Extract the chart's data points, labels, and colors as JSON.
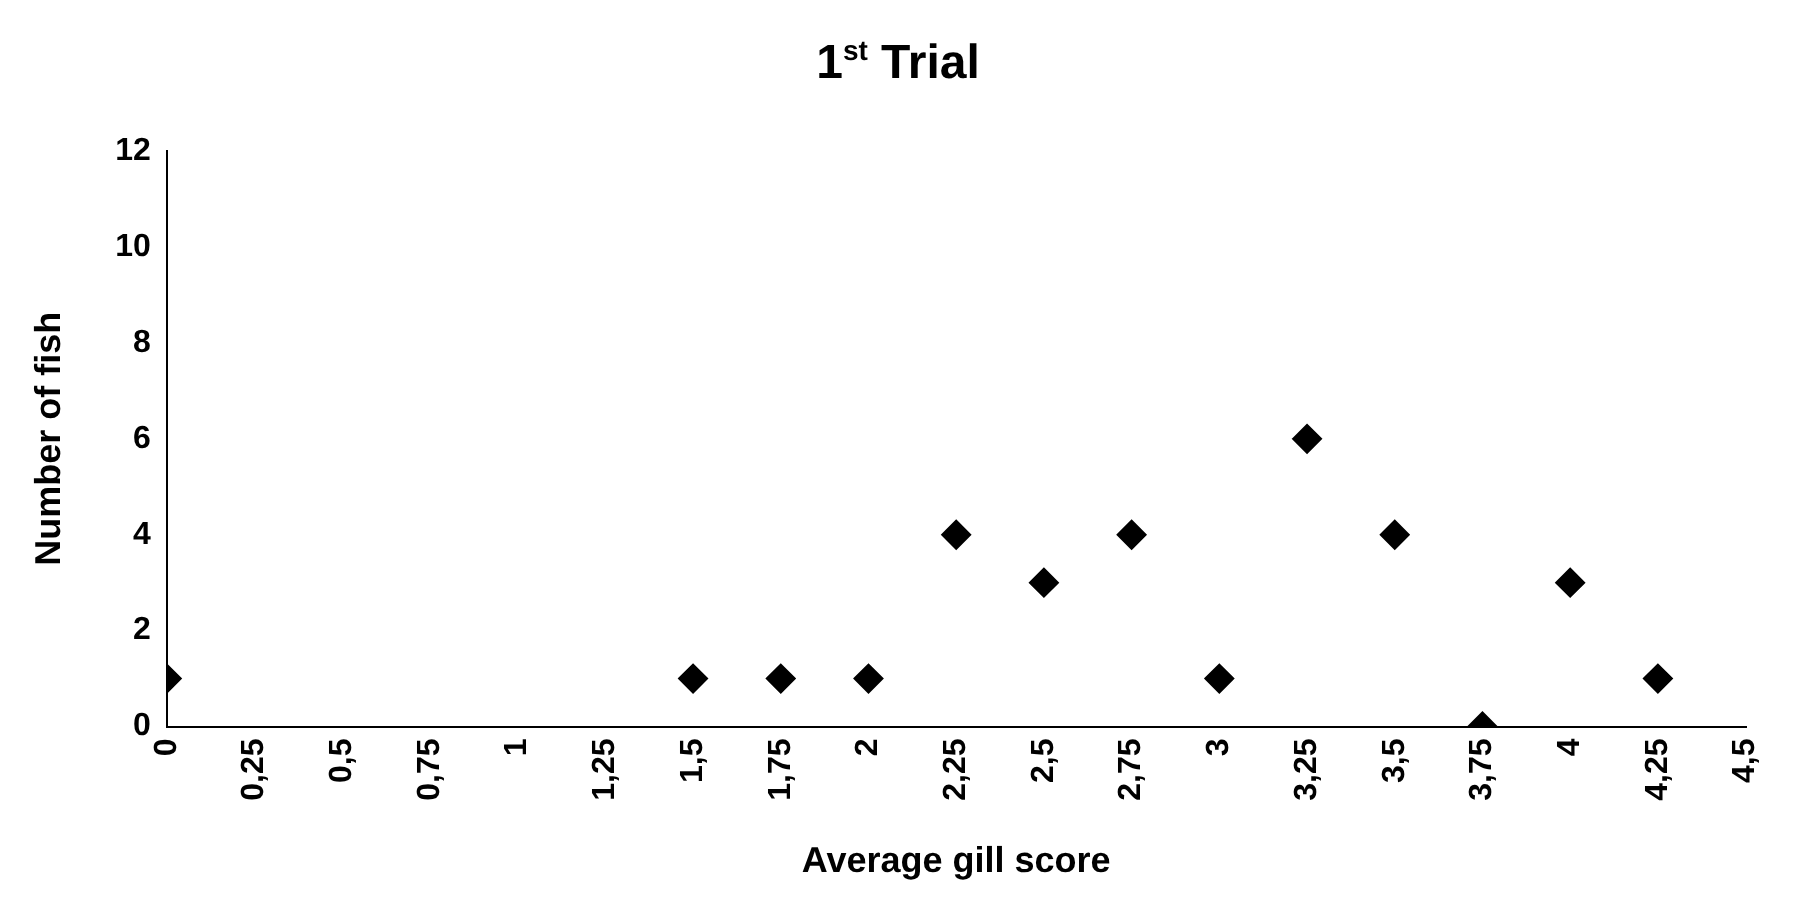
{
  "chart_data": {
    "type": "scatter",
    "title": "1$^{st}$ Trial",
    "xlabel": "Average gill score",
    "ylabel": "Number of fish",
    "x": [
      0,
      1.5,
      1.75,
      2,
      2.25,
      2.5,
      2.75,
      3,
      3.25,
      3.5,
      3.75,
      4,
      4.25
    ],
    "series": [
      {
        "color": "#000000",
        "values": [
          1,
          1,
          1,
          1,
          4,
          3,
          4,
          1,
          6,
          4,
          0,
          3,
          1
        ]
      }
    ],
    "xlim": [
      0,
      4.5
    ],
    "xticks": [
      0,
      {
        "value": 0.25,
        "label": "0,25"
      },
      {
        "value": 0.5,
        "label": "0,5"
      },
      {
        "value": 0.75,
        "label": "0,75"
      },
      1,
      {
        "value": 1.25,
        "label": "1,25"
      },
      {
        "value": 1.5,
        "label": "1,5"
      },
      {
        "value": 1.75,
        "label": "1,75"
      },
      2,
      {
        "value": 2.25,
        "label": "2,25"
      },
      {
        "value": 2.5,
        "label": "2,5"
      },
      {
        "value": 2.75,
        "label": "2,75"
      },
      3,
      {
        "value": 3.25,
        "label": "3,25"
      },
      {
        "value": 3.5,
        "label": "3,5"
      },
      {
        "value": 3.75,
        "label": "3,75"
      },
      4,
      {
        "value": 4.25,
        "label": "4,25"
      },
      {
        "value": 4.5,
        "label": "4,5"
      }
    ],
    "ylim": [
      0,
      12
    ],
    "yticks": [
      0,
      2,
      4,
      6,
      8,
      10,
      12
    ],
    "grid": false,
    "legend": false,
    "marker": "diamond"
  }
}
